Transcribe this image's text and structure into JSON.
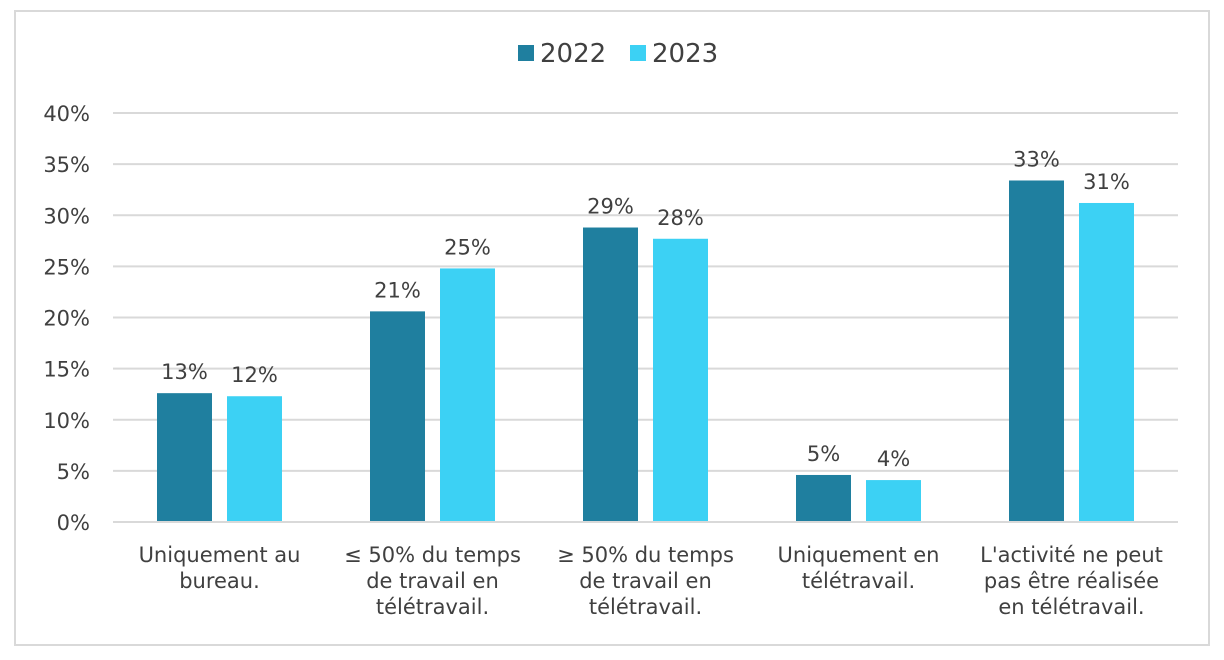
{
  "chart_data": {
    "type": "bar",
    "title": "",
    "xlabel": "",
    "ylabel": "",
    "categories": [
      [
        "Uniquement au",
        "bureau."
      ],
      [
        "≤ 50% du temps",
        "de travail en",
        "télétravail."
      ],
      [
        "≥ 50% du temps",
        "de travail en",
        "télétravail."
      ],
      [
        "Uniquement en",
        "télétravail."
      ],
      [
        "L'activité ne peut",
        "pas être réalisée",
        "en télétravail."
      ]
    ],
    "series": [
      {
        "name": "2022",
        "color": "#1f7f9f",
        "values": [
          12.6,
          20.6,
          28.8,
          4.6,
          33.4
        ],
        "labels": [
          "13%",
          "21%",
          "29%",
          "5%",
          "33%"
        ]
      },
      {
        "name": "2023",
        "color": "#3cd1f4",
        "values": [
          12.3,
          24.8,
          27.7,
          4.1,
          31.2
        ],
        "labels": [
          "12%",
          "25%",
          "28%",
          "4%",
          "31%"
        ]
      }
    ],
    "ylim": [
      0,
      40
    ],
    "yticks": [
      "0%",
      "5%",
      "10%",
      "15%",
      "20%",
      "25%",
      "30%",
      "35%",
      "40%"
    ],
    "ytick_values": [
      0,
      5,
      10,
      15,
      20,
      25,
      30,
      35,
      40
    ],
    "grid": true,
    "legend": "top-center"
  }
}
